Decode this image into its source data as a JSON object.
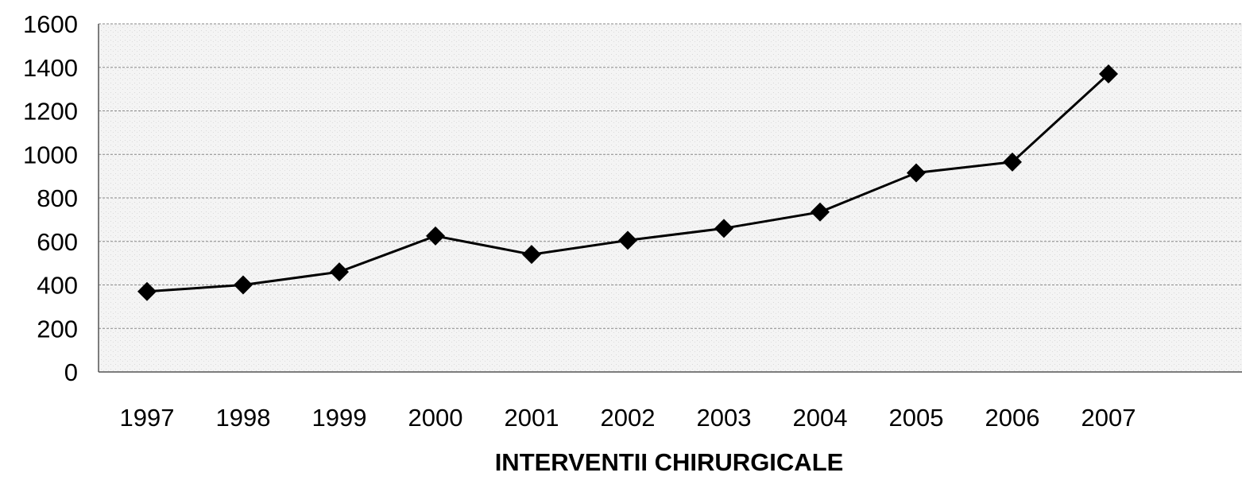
{
  "chart_data": {
    "type": "line",
    "title": "INTERVENTII CHIRURGICALE",
    "categories": [
      "1997",
      "1998",
      "1999",
      "2000",
      "2001",
      "2002",
      "2003",
      "2004",
      "2005",
      "2006",
      "2007"
    ],
    "series": [
      {
        "name": "INTERVENTII CHIRURGICALE",
        "color": "#000000",
        "values": [
          370,
          400,
          460,
          625,
          540,
          605,
          660,
          735,
          915,
          965,
          1370
        ]
      }
    ],
    "ylim": [
      0,
      1600
    ],
    "yticks": [
      0,
      200,
      400,
      600,
      800,
      1000,
      1200,
      1400,
      1600
    ],
    "grid": true
  }
}
